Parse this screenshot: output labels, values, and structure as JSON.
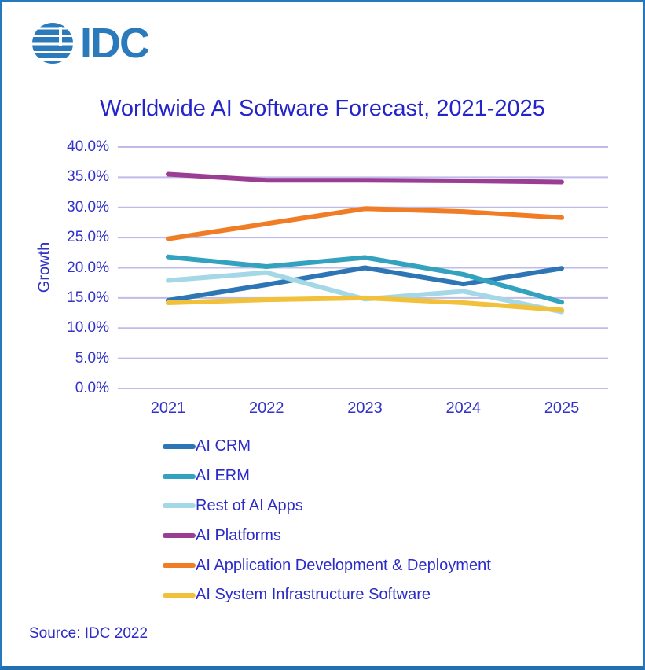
{
  "logo": {
    "text": "IDC"
  },
  "title": "Worldwide AI Software Forecast, 2021-2025",
  "source": "Source: IDC 2022",
  "colors": {
    "frame_border": "#2577BE",
    "logo_blue": "#2B7BBC",
    "text_blue": "#2B2BC8",
    "gridline": "#BFBCEA"
  },
  "chart_data": {
    "type": "line",
    "title": "Worldwide AI Software Forecast, 2021-2025",
    "xlabel": "",
    "ylabel": "Growth",
    "ylim": [
      0,
      40
    ],
    "grid": true,
    "legend_position": "bottom-left",
    "xticks": [
      "2021",
      "2022",
      "2023",
      "2024",
      "2025"
    ],
    "yticks": [
      "0.0%",
      "5.0%",
      "10.0%",
      "15.0%",
      "20.0%",
      "25.0%",
      "30.0%",
      "35.0%",
      "40.0%"
    ],
    "categories": [
      2021,
      2022,
      2023,
      2024,
      2025
    ],
    "series": [
      {
        "name": "AI CRM",
        "color": "#2E75B6",
        "values": [
          14.6,
          17.2,
          20.0,
          17.3,
          19.9
        ]
      },
      {
        "name": "AI ERM",
        "color": "#33A2BE",
        "values": [
          21.8,
          20.2,
          21.7,
          18.9,
          14.3
        ]
      },
      {
        "name": "Rest of AI Apps",
        "color": "#A5D8E6",
        "values": [
          17.9,
          19.2,
          14.8,
          16.1,
          12.7
        ]
      },
      {
        "name": "AI Platforms",
        "color": "#9C3D94",
        "values": [
          35.5,
          34.5,
          34.5,
          34.4,
          34.2
        ]
      },
      {
        "name": "AI Application Development & Deployment",
        "color": "#F07D26",
        "values": [
          24.8,
          27.3,
          29.8,
          29.3,
          28.3
        ]
      },
      {
        "name": "AI System Infrastructure Software",
        "color": "#F2C13C",
        "values": [
          14.2,
          14.7,
          15.0,
          14.2,
          13.0
        ]
      }
    ]
  }
}
